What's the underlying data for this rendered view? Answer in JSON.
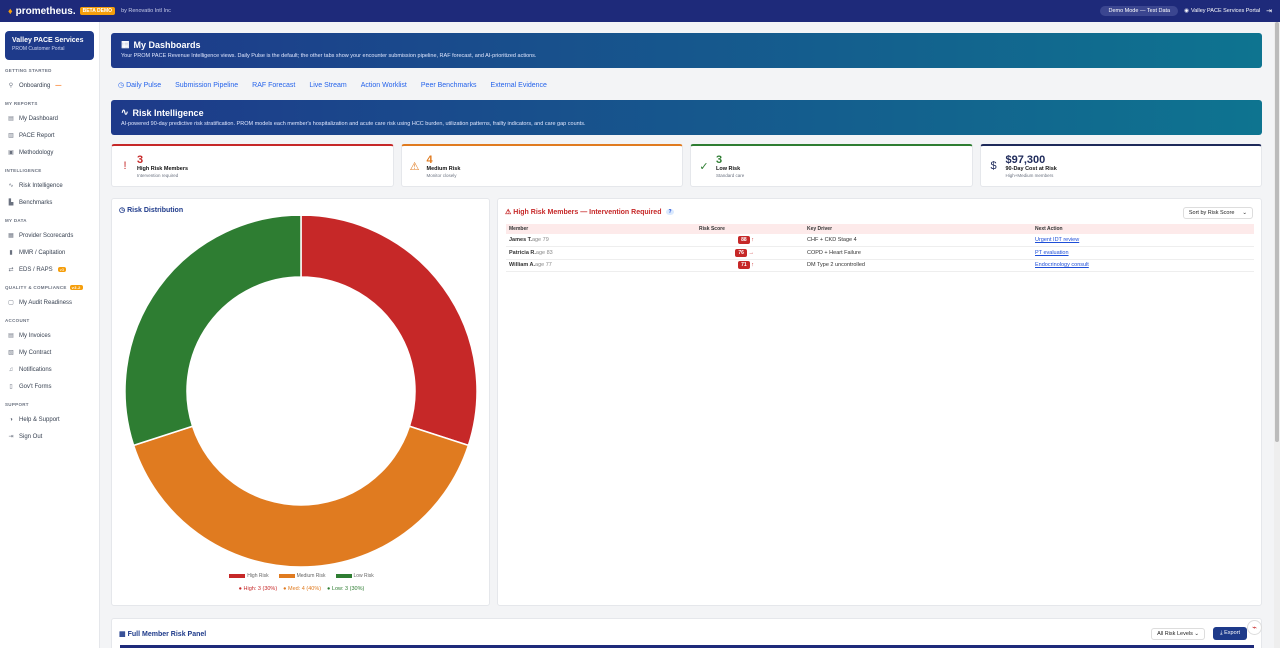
{
  "topbar": {
    "logo": "prometheus.",
    "beta": "BETA DEMO",
    "byline": "by Renovatio Intl Inc",
    "demo_mode": "Demo Mode — Test Data",
    "portal": "Valley PACE Services Portal"
  },
  "sidebar": {
    "org_name": "Valley PACE Services",
    "org_sub": "PROM Customer Portal",
    "sections": [
      {
        "title": "GETTING STARTED",
        "items": [
          {
            "label": "Onboarding",
            "icon": "rocket-icon"
          }
        ]
      },
      {
        "title": "MY REPORTS",
        "items": [
          {
            "label": "My Dashboard",
            "icon": "dashboard-icon"
          },
          {
            "label": "PACE Report",
            "icon": "bar-chart-icon"
          },
          {
            "label": "Methodology",
            "icon": "book-icon"
          }
        ]
      },
      {
        "title": "INTELLIGENCE",
        "items": [
          {
            "label": "Risk Intelligence",
            "icon": "pulse-icon"
          },
          {
            "label": "Benchmarks",
            "icon": "benchmark-icon"
          }
        ]
      },
      {
        "title": "MY DATA",
        "items": [
          {
            "label": "Provider Scorecards",
            "icon": "scorecard-icon"
          },
          {
            "label": "MMR / Capitation",
            "icon": "chart-icon"
          },
          {
            "label": "EDS / RAPS",
            "icon": "transfer-icon",
            "tag": "v3"
          }
        ]
      },
      {
        "title": "QUALITY & COMPLIANCE",
        "tag": "v3.2",
        "items": [
          {
            "label": "My Audit Readiness",
            "icon": "clipboard-icon"
          }
        ]
      },
      {
        "title": "ACCOUNT",
        "items": [
          {
            "label": "My Invoices",
            "icon": "invoice-icon"
          },
          {
            "label": "My Contract",
            "icon": "contract-icon"
          },
          {
            "label": "Notifications",
            "icon": "bell-icon"
          },
          {
            "label": "Gov't Forms",
            "icon": "form-icon"
          }
        ]
      },
      {
        "title": "SUPPORT",
        "items": [
          {
            "label": "Help & Support",
            "icon": "headset-icon"
          },
          {
            "label": "Sign Out",
            "icon": "signout-icon"
          }
        ]
      }
    ]
  },
  "dashboard": {
    "title": "My Dashboards",
    "desc": "Your PROM PACE Revenue Intelligence views. Daily Pulse is the default; the other tabs show your encounter submission pipeline, RAF forecast, and AI-prioritized actions."
  },
  "tabs": [
    "Daily Pulse",
    "Submission Pipeline",
    "RAF Forecast",
    "Live Stream",
    "Action Worklist",
    "Peer Benchmarks",
    "External Evidence"
  ],
  "risk": {
    "title": "Risk Intelligence",
    "desc": "AI-powered 90-day predictive risk stratification. PROM models each member's hospitalization and acute care risk using HCC burden, utilization patterns, frailty indicators, and care gap counts."
  },
  "stats": [
    {
      "value": "3",
      "label": "High Risk Members",
      "sub": "Intervention required",
      "color": "#c62828",
      "icon": "!"
    },
    {
      "value": "4",
      "label": "Medium Risk",
      "sub": "Monitor closely",
      "color": "#e07b20",
      "icon": "⚠"
    },
    {
      "value": "3",
      "label": "Low Risk",
      "sub": "Standard care",
      "color": "#2e7d32",
      "icon": "✓"
    },
    {
      "value": "$97,300",
      "label": "90-Day Cost at Risk",
      "sub": "High+Medium members",
      "color": "#1e2a5a",
      "icon": "$"
    }
  ],
  "distribution": {
    "title": "Risk Distribution",
    "summary": [
      "High: 3 (30%)",
      "Med: 4 (40%)",
      "Low: 3 (30%)"
    ]
  },
  "chart_data": {
    "type": "pie",
    "categories": [
      "High Risk",
      "Medium Risk",
      "Low Risk"
    ],
    "values": [
      3,
      4,
      3
    ],
    "colors": [
      "#c62828",
      "#e07b20",
      "#2e7d32"
    ]
  },
  "high_risk": {
    "title": "High Risk Members — Intervention Required",
    "sort": "Sort by Risk Score",
    "columns": [
      "Member",
      "Risk Score",
      "Key Driver",
      "Next Action"
    ],
    "rows": [
      {
        "name": "James T.",
        "age": "age 79",
        "score": "88",
        "trend": "↑",
        "driver": "CHF + CKD Stage 4",
        "action": "Urgent IDT review"
      },
      {
        "name": "Patricia R.",
        "age": "age 83",
        "score": "76",
        "trend": "→",
        "driver": "COPD + Heart Failure",
        "action": "PT evaluation"
      },
      {
        "name": "William A.",
        "age": "age 77",
        "score": "71",
        "trend": "↑",
        "driver": "DM Type 2 uncontrolled",
        "action": "Endocrinology consult"
      }
    ]
  },
  "full_panel": {
    "title": "Full Member Risk Panel",
    "filter": "All Risk Levels",
    "export": "Export"
  }
}
